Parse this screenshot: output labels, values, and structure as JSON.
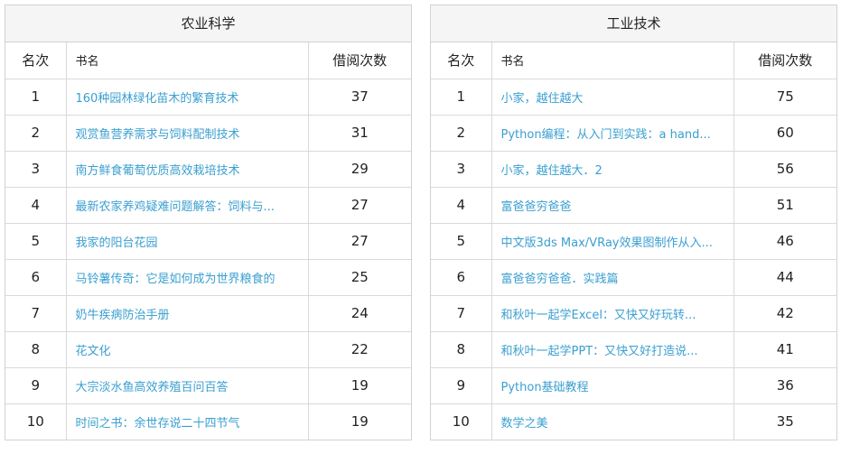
{
  "panels": [
    {
      "title": "农业科学",
      "headers": {
        "rank": "名次",
        "title": "书名",
        "count": "借阅次数"
      },
      "rows": [
        {
          "rank": "1",
          "title": "160种园林绿化苗木的繁育技术",
          "count": "37"
        },
        {
          "rank": "2",
          "title": "观赏鱼营养需求与饲料配制技术",
          "count": "31"
        },
        {
          "rank": "3",
          "title": "南方鲜食葡萄优质高效栽培技术",
          "count": "29"
        },
        {
          "rank": "4",
          "title": "最新农家养鸡疑难问题解答：饲料与...",
          "count": "27"
        },
        {
          "rank": "5",
          "title": "我家的阳台花园",
          "count": "27"
        },
        {
          "rank": "6",
          "title": "马铃薯传奇：它是如何成为世界粮食的",
          "count": "25"
        },
        {
          "rank": "7",
          "title": "奶牛疾病防治手册",
          "count": "24"
        },
        {
          "rank": "8",
          "title": "花文化",
          "count": "22"
        },
        {
          "rank": "9",
          "title": "大宗淡水鱼高效养殖百问百答",
          "count": "19"
        },
        {
          "rank": "10",
          "title": "时间之书：余世存说二十四节气",
          "count": "19"
        }
      ]
    },
    {
      "title": "工业技术",
      "headers": {
        "rank": "名次",
        "title": "书名",
        "count": "借阅次数"
      },
      "rows": [
        {
          "rank": "1",
          "title": "小家，越住越大",
          "count": "75"
        },
        {
          "rank": "2",
          "title": "Python编程：从入门到实践：a hand...",
          "count": "60"
        },
        {
          "rank": "3",
          "title": "小家，越住越大．2",
          "count": "56"
        },
        {
          "rank": "4",
          "title": "富爸爸穷爸爸",
          "count": "51"
        },
        {
          "rank": "5",
          "title": "中文版3ds Max/VRay效果图制作从入...",
          "count": "46"
        },
        {
          "rank": "6",
          "title": "富爸爸穷爸爸．实践篇",
          "count": "44"
        },
        {
          "rank": "7",
          "title": "和秋叶一起学Excel：又快又好玩转...",
          "count": "42"
        },
        {
          "rank": "8",
          "title": "和秋叶一起学PPT：又快又好打造说...",
          "count": "41"
        },
        {
          "rank": "9",
          "title": "Python基础教程",
          "count": "36"
        },
        {
          "rank": "10",
          "title": "数学之美",
          "count": "35"
        }
      ]
    }
  ]
}
